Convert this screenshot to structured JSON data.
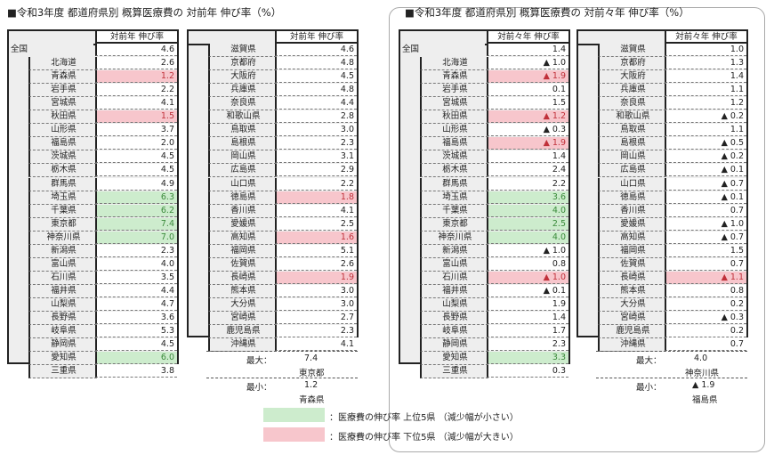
{
  "left": {
    "title": "■令和3年度 都道府県別 概算医療費の 対前年 伸び率（%）",
    "column_header": "対前年 伸び率",
    "national": {
      "label": "全国",
      "value": "4.6"
    },
    "table1": [
      [
        "北海道",
        "2.6",
        ""
      ],
      [
        "青森県",
        "1.2",
        "down"
      ],
      [
        "岩手県",
        "2.2",
        ""
      ],
      [
        "宮城県",
        "4.1",
        ""
      ],
      [
        "秋田県",
        "1.5",
        "down"
      ],
      [
        "山形県",
        "3.7",
        ""
      ],
      [
        "福島県",
        "2.0",
        ""
      ],
      [
        "茨城県",
        "4.5",
        ""
      ],
      [
        "栃木県",
        "4.5",
        ""
      ],
      [
        "群馬県",
        "4.9",
        ""
      ],
      [
        "埼玉県",
        "6.3",
        "up"
      ],
      [
        "千葉県",
        "6.2",
        "up"
      ],
      [
        "東京都",
        "7.4",
        "up"
      ],
      [
        "神奈川県",
        "7.0",
        "up"
      ],
      [
        "新潟県",
        "2.3",
        ""
      ],
      [
        "富山県",
        "4.0",
        ""
      ],
      [
        "石川県",
        "3.5",
        ""
      ],
      [
        "福井県",
        "4.4",
        ""
      ],
      [
        "山梨県",
        "4.7",
        ""
      ],
      [
        "長野県",
        "3.6",
        ""
      ],
      [
        "岐阜県",
        "5.3",
        ""
      ],
      [
        "静岡県",
        "4.5",
        ""
      ],
      [
        "愛知県",
        "6.0",
        "up"
      ],
      [
        "三重県",
        "3.8",
        ""
      ]
    ],
    "table2": [
      [
        "滋賀県",
        "4.6",
        ""
      ],
      [
        "京都府",
        "4.8",
        ""
      ],
      [
        "大阪府",
        "4.5",
        ""
      ],
      [
        "兵庫県",
        "4.8",
        ""
      ],
      [
        "奈良県",
        "4.4",
        ""
      ],
      [
        "和歌山県",
        "2.8",
        ""
      ],
      [
        "鳥取県",
        "3.0",
        ""
      ],
      [
        "島根県",
        "2.3",
        ""
      ],
      [
        "岡山県",
        "3.1",
        ""
      ],
      [
        "広島県",
        "2.9",
        ""
      ],
      [
        "山口県",
        "2.2",
        ""
      ],
      [
        "徳島県",
        "1.8",
        "down"
      ],
      [
        "香川県",
        "4.1",
        ""
      ],
      [
        "愛媛県",
        "2.5",
        ""
      ],
      [
        "高知県",
        "1.6",
        "down"
      ],
      [
        "福岡県",
        "5.1",
        ""
      ],
      [
        "佐賀県",
        "2.6",
        ""
      ],
      [
        "長崎県",
        "1.9",
        "down"
      ],
      [
        "熊本県",
        "3.0",
        ""
      ],
      [
        "大分県",
        "3.0",
        ""
      ],
      [
        "宮崎県",
        "2.7",
        ""
      ],
      [
        "鹿児島県",
        "2.3",
        ""
      ],
      [
        "沖縄県",
        "4.1",
        ""
      ]
    ],
    "stats": {
      "max_label": "最大：",
      "max_value": "7.4",
      "max_pref": "東京都",
      "min_label": "最小：",
      "min_value": "1.2",
      "min_pref": "青森県"
    }
  },
  "right": {
    "title": "■令和3年度 都道府県別 概算医療費の 対前々年 伸び率（%）",
    "column_header": "対前々年 伸び率",
    "national": {
      "label": "全国",
      "value": "1.4"
    },
    "table1": [
      [
        "北海道",
        "▲ 1.0",
        ""
      ],
      [
        "青森県",
        "▲ 1.9",
        "down"
      ],
      [
        "岩手県",
        "0.1",
        ""
      ],
      [
        "宮城県",
        "1.5",
        ""
      ],
      [
        "秋田県",
        "▲ 1.2",
        "down"
      ],
      [
        "山形県",
        "▲ 0.3",
        ""
      ],
      [
        "福島県",
        "▲ 1.9",
        "down"
      ],
      [
        "茨城県",
        "1.4",
        ""
      ],
      [
        "栃木県",
        "2.4",
        ""
      ],
      [
        "群馬県",
        "2.2",
        ""
      ],
      [
        "埼玉県",
        "3.6",
        "up"
      ],
      [
        "千葉県",
        "4.0",
        "up"
      ],
      [
        "東京都",
        "2.5",
        "up"
      ],
      [
        "神奈川県",
        "4.0",
        "up"
      ],
      [
        "新潟県",
        "▲ 1.0",
        ""
      ],
      [
        "富山県",
        "0.8",
        ""
      ],
      [
        "石川県",
        "▲ 1.0",
        "down"
      ],
      [
        "福井県",
        "▲ 0.1",
        ""
      ],
      [
        "山梨県",
        "1.9",
        ""
      ],
      [
        "長野県",
        "1.4",
        ""
      ],
      [
        "岐阜県",
        "1.7",
        ""
      ],
      [
        "静岡県",
        "2.3",
        ""
      ],
      [
        "愛知県",
        "3.3",
        "up"
      ],
      [
        "三重県",
        "0.3",
        ""
      ]
    ],
    "table2": [
      [
        "滋賀県",
        "1.0",
        ""
      ],
      [
        "京都府",
        "1.3",
        ""
      ],
      [
        "大阪府",
        "1.4",
        ""
      ],
      [
        "兵庫県",
        "1.1",
        ""
      ],
      [
        "奈良県",
        "1.2",
        ""
      ],
      [
        "和歌山県",
        "▲ 0.2",
        ""
      ],
      [
        "鳥取県",
        "1.1",
        ""
      ],
      [
        "島根県",
        "▲ 0.5",
        ""
      ],
      [
        "岡山県",
        "▲ 0.2",
        ""
      ],
      [
        "広島県",
        "▲ 0.1",
        ""
      ],
      [
        "山口県",
        "▲ 0.7",
        ""
      ],
      [
        "徳島県",
        "▲ 0.1",
        ""
      ],
      [
        "香川県",
        "0.7",
        ""
      ],
      [
        "愛媛県",
        "▲ 1.0",
        ""
      ],
      [
        "高知県",
        "▲ 0.7",
        ""
      ],
      [
        "福岡県",
        "1.5",
        ""
      ],
      [
        "佐賀県",
        "0.7",
        ""
      ],
      [
        "長崎県",
        "▲ 1.1",
        "down"
      ],
      [
        "熊本県",
        "0.8",
        ""
      ],
      [
        "大分県",
        "0.2",
        ""
      ],
      [
        "宮崎県",
        "▲ 0.3",
        ""
      ],
      [
        "鹿児島県",
        "0.2",
        ""
      ],
      [
        "沖縄県",
        "0.7",
        ""
      ]
    ],
    "stats": {
      "max_label": "最大：",
      "max_value": "4.0",
      "max_pref": "神奈川県",
      "min_label": "最小：",
      "min_value": "▲ 1.9",
      "min_pref": "福島県"
    }
  },
  "legend": {
    "top5": "：医療費の伸び率 上位5県 （減少幅が小さい）",
    "bottom5": "：医療費の伸び率 下位5県 （減少幅が大きい）"
  },
  "colors": {
    "top5": "#cdeccd",
    "bottom5": "#f7c6cc"
  }
}
